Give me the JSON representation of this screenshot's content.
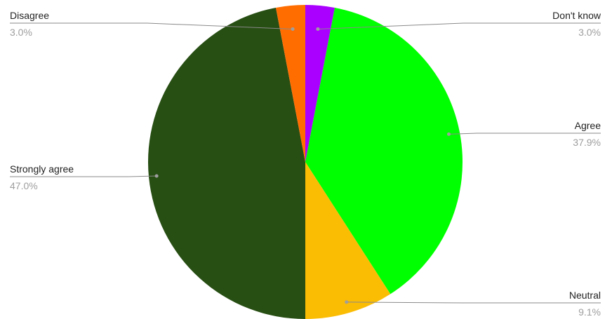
{
  "chart_data": {
    "type": "pie",
    "title": "",
    "slices": [
      {
        "label": "Don't know",
        "value": 3.0,
        "percent_label": "3.0%",
        "color": "#aa00ff"
      },
      {
        "label": "Agree",
        "value": 37.9,
        "percent_label": "37.9%",
        "color": "#00ff00"
      },
      {
        "label": "Neutral",
        "value": 9.1,
        "percent_label": "9.1%",
        "color": "#fbbc04"
      },
      {
        "label": "Strongly agree",
        "value": 47.0,
        "percent_label": "47.0%",
        "color": "#274e13"
      },
      {
        "label": "Disagree",
        "value": 3.0,
        "percent_label": "3.0%",
        "color": "#ff6d01"
      }
    ],
    "start_angle": "12 o'clock",
    "direction": "clockwise",
    "legend": "none",
    "labels": "outside with leader lines"
  }
}
